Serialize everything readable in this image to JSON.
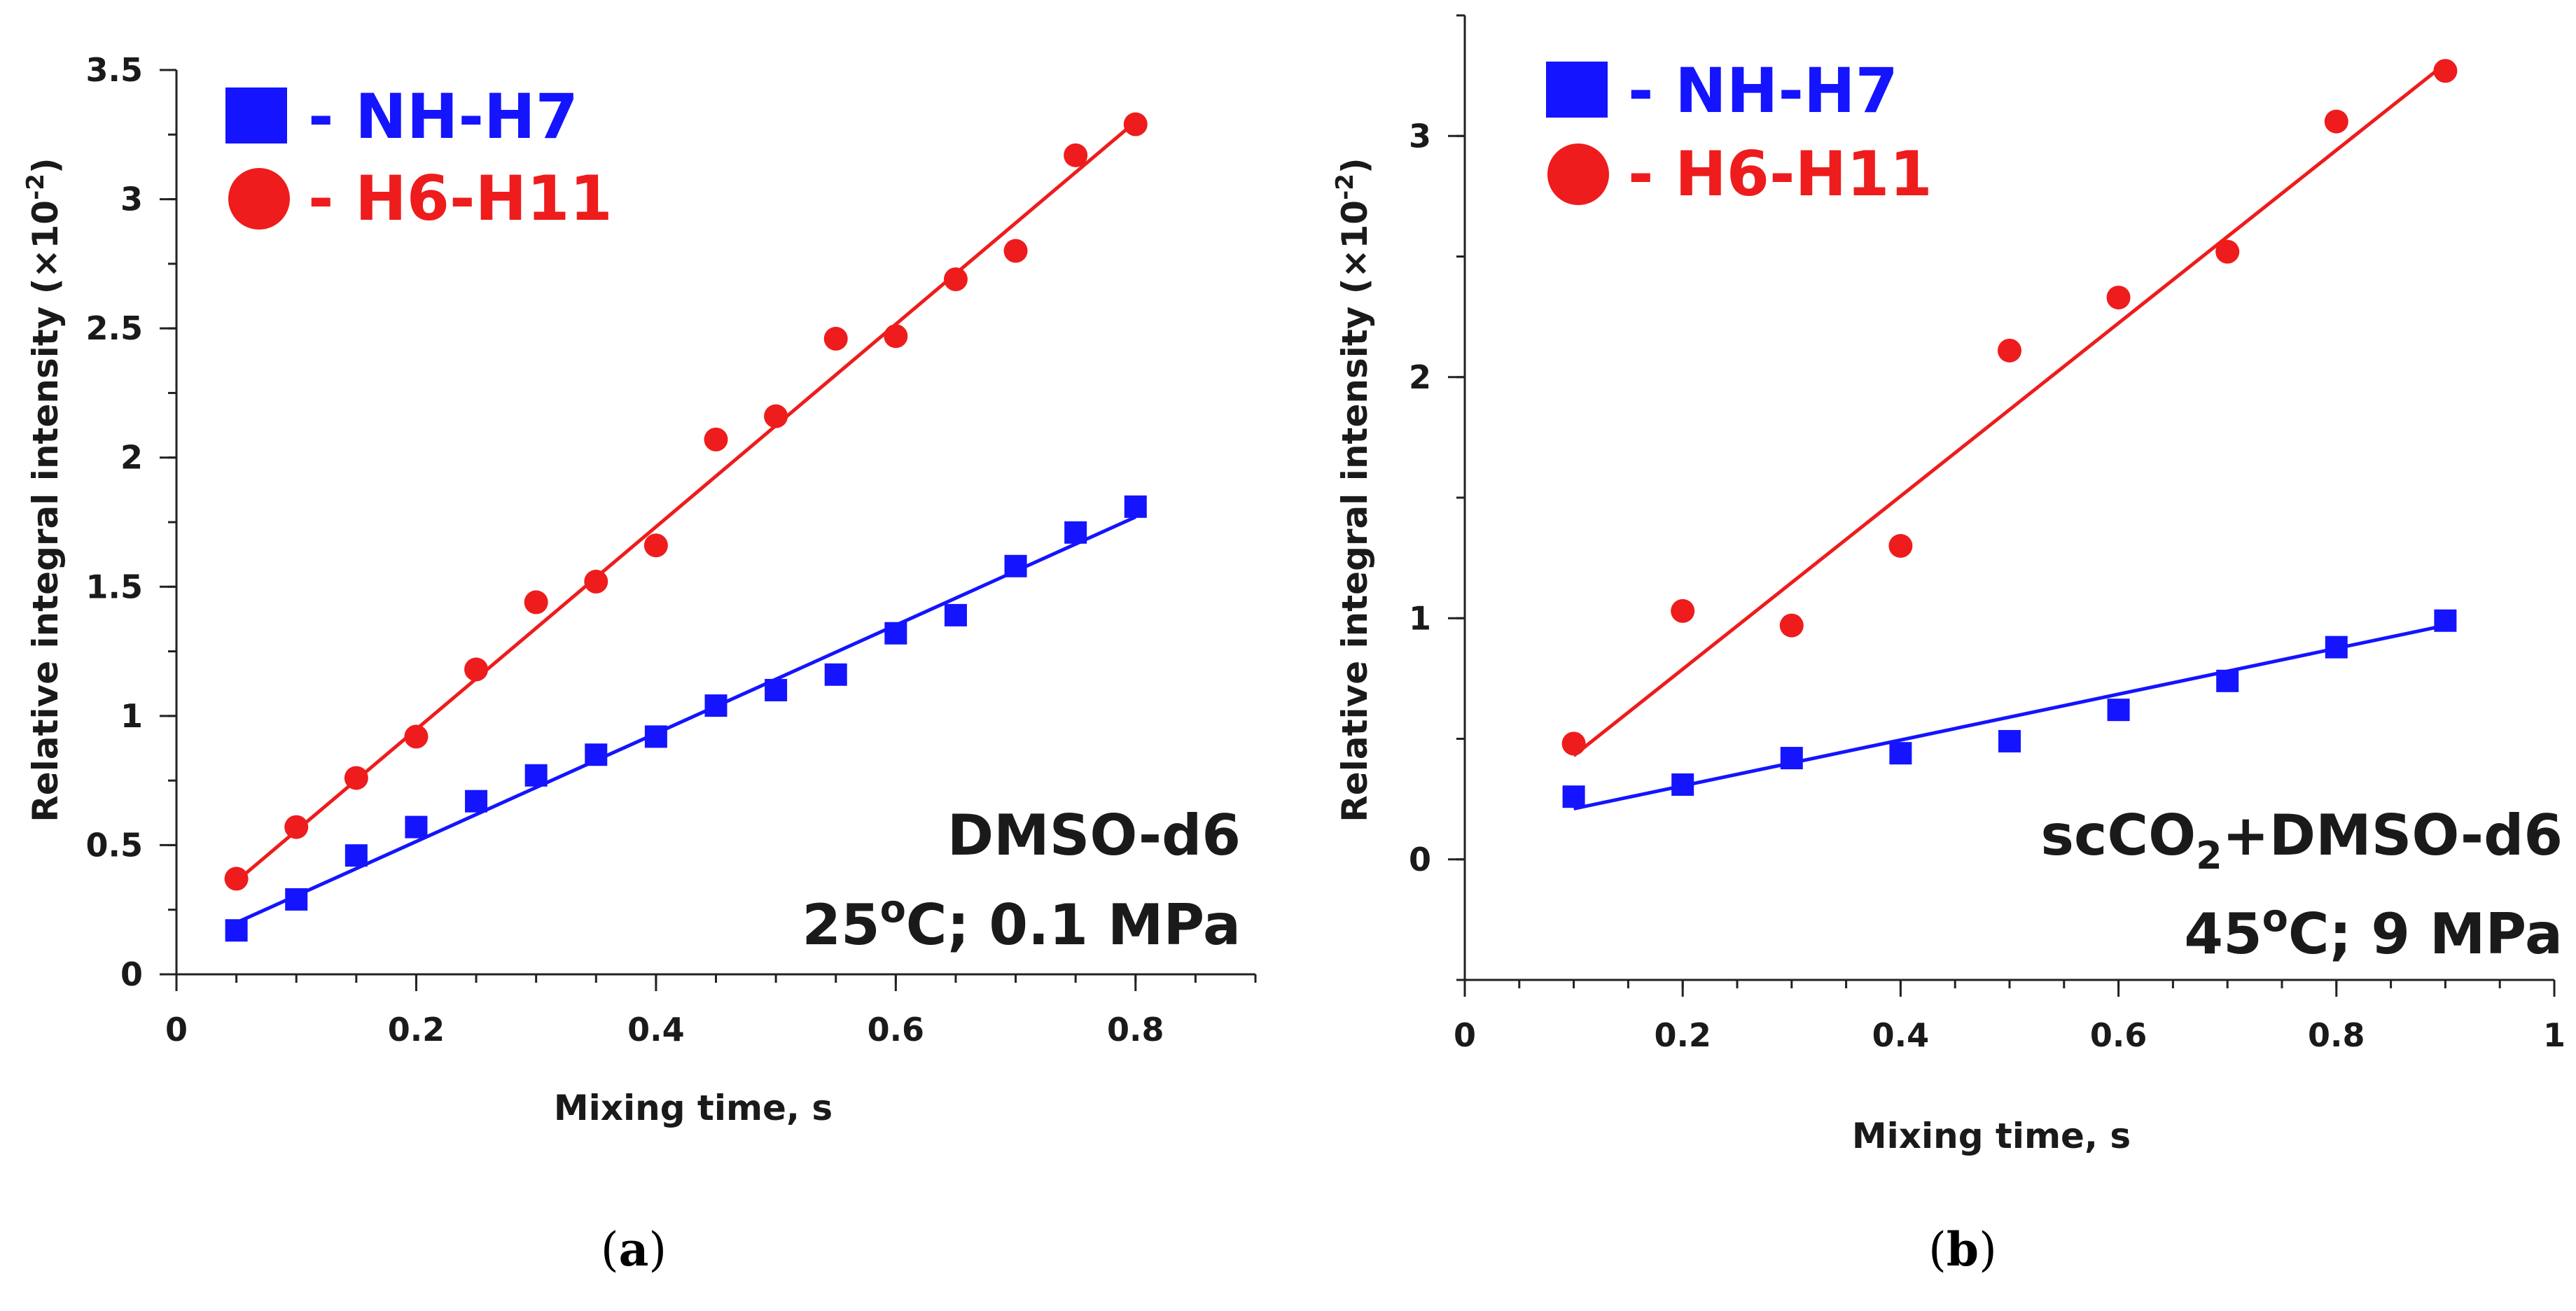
{
  "chart_data": [
    {
      "type": "scatter",
      "panel_label": "a",
      "title": "",
      "xlabel": "Mixing time, s",
      "ylabel": "Relative integral intensity (×10",
      "ylabel_exp": "-2",
      "ylabel_close": ")",
      "xlim": [
        0,
        0.9
      ],
      "ylim": [
        0,
        3.5
      ],
      "xticks": [
        "0",
        "0.2",
        "0.4",
        "0.6",
        "0.8"
      ],
      "xtick_values": [
        0,
        0.2,
        0.4,
        0.6,
        0.8
      ],
      "yticks": [
        "0",
        "0.5",
        "1",
        "1.5",
        "2",
        "2.5",
        "3",
        "3.5"
      ],
      "ytick_values": [
        0,
        0.5,
        1,
        1.5,
        2,
        2.5,
        3,
        3.5
      ],
      "legend_location": "top-left",
      "condition_line1": "DMSO-d6",
      "condition_line2_pre": "25",
      "condition_line2_sup": "o",
      "condition_line2_post": "C; 0.1 MPa",
      "series": [
        {
          "name": "- NH-H7",
          "marker": "square",
          "color": "#1414ff",
          "x": [
            0.05,
            0.1,
            0.15,
            0.2,
            0.25,
            0.3,
            0.35,
            0.4,
            0.45,
            0.5,
            0.55,
            0.6,
            0.65,
            0.7,
            0.75,
            0.8
          ],
          "values": [
            0.17,
            0.29,
            0.46,
            0.57,
            0.67,
            0.77,
            0.85,
            0.92,
            1.04,
            1.1,
            1.16,
            1.32,
            1.39,
            1.58,
            1.71,
            1.81
          ],
          "fit": {
            "x": [
              0.05,
              0.8
            ],
            "y": [
              0.2,
              1.77
            ]
          }
        },
        {
          "name": "- H6-H11",
          "marker": "circle",
          "color": "#ee1c1c",
          "x": [
            0.05,
            0.1,
            0.15,
            0.2,
            0.25,
            0.3,
            0.35,
            0.4,
            0.45,
            0.5,
            0.55,
            0.6,
            0.65,
            0.7,
            0.75,
            0.8
          ],
          "values": [
            0.37,
            0.57,
            0.76,
            0.92,
            1.18,
            1.44,
            1.52,
            1.66,
            2.07,
            2.16,
            2.46,
            2.47,
            2.69,
            2.8,
            3.17,
            3.29
          ],
          "fit": {
            "x": [
              0.05,
              0.8
            ],
            "y": [
              0.36,
              3.3
            ]
          }
        }
      ]
    },
    {
      "type": "scatter",
      "panel_label": "b",
      "title": "",
      "xlabel": "Mixing time, s",
      "ylabel": "Relative integral intensity (×10",
      "ylabel_exp": "-2",
      "ylabel_close": ")",
      "xlim": [
        0,
        1
      ],
      "ylim": [
        -0.5,
        3.5
      ],
      "xticks": [
        "0",
        "0.2",
        "0.4",
        "0.6",
        "0.8",
        "1"
      ],
      "xtick_values": [
        0,
        0.2,
        0.4,
        0.6,
        0.8,
        1
      ],
      "yticks": [
        "0",
        "1",
        "2",
        "3"
      ],
      "ytick_values": [
        0,
        1,
        2,
        3
      ],
      "legend_location": "top-left",
      "condition_line1_pre": "scCO",
      "condition_line1_sub": "2",
      "condition_line1_post": "+DMSO-d6",
      "condition_line2_pre": "45",
      "condition_line2_sup": "o",
      "condition_line2_post": "C; 9 MPa",
      "series": [
        {
          "name": "- NH-H7",
          "marker": "square",
          "color": "#1414ff",
          "x": [
            0.1,
            0.2,
            0.3,
            0.4,
            0.5,
            0.6,
            0.7,
            0.8,
            0.9
          ],
          "values": [
            0.26,
            0.31,
            0.42,
            0.44,
            0.49,
            0.62,
            0.74,
            0.88,
            0.99
          ],
          "fit": {
            "x": [
              0.1,
              0.9
            ],
            "y": [
              0.21,
              0.97
            ]
          }
        },
        {
          "name": "- H6-H11",
          "marker": "circle",
          "color": "#ee1c1c",
          "x": [
            0.1,
            0.2,
            0.3,
            0.4,
            0.5,
            0.6,
            0.7,
            0.8,
            0.9
          ],
          "values": [
            0.48,
            1.03,
            0.97,
            1.3,
            2.11,
            2.33,
            2.52,
            3.06,
            3.27
          ],
          "fit": {
            "x": [
              0.1,
              0.9
            ],
            "y": [
              0.43,
              3.3
            ]
          }
        }
      ]
    }
  ]
}
